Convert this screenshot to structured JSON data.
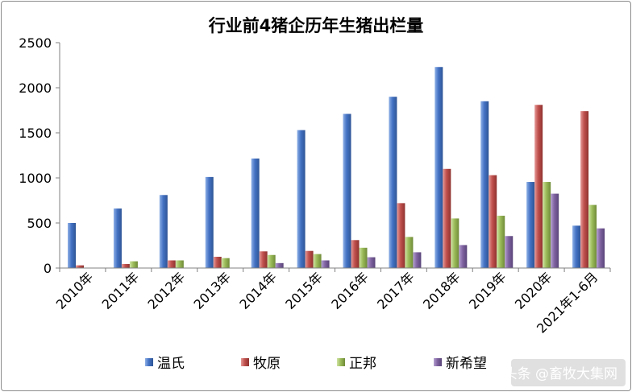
{
  "chart_data": {
    "type": "bar",
    "title": "行业前4猪企历年生猪出栏量",
    "xlabel": "",
    "ylabel": "",
    "ylim": [
      0,
      2500
    ],
    "yticks": [
      0,
      500,
      1000,
      1500,
      2000,
      2500
    ],
    "grid": false,
    "legend_position": "bottom",
    "categories": [
      "2010年",
      "2011年",
      "2012年",
      "2013年",
      "2014年",
      "2015年",
      "2016年",
      "2017年",
      "2018年",
      "2019年",
      "2020年",
      "2021年1-6月"
    ],
    "series": [
      {
        "name": "温氏",
        "color": "#4472c4",
        "values": [
          500,
          660,
          810,
          1010,
          1215,
          1530,
          1710,
          1900,
          2230,
          1850,
          955,
          470
        ]
      },
      {
        "name": "牧原",
        "color": "#c0504d",
        "values": [
          30,
          45,
          85,
          125,
          185,
          190,
          310,
          720,
          1100,
          1030,
          1810,
          1740
        ]
      },
      {
        "name": "正邦",
        "color": "#9bbb59",
        "values": [
          0,
          75,
          85,
          110,
          145,
          155,
          225,
          345,
          550,
          580,
          955,
          700
        ]
      },
      {
        "name": "新希望",
        "color": "#8064a2",
        "values": [
          0,
          0,
          0,
          0,
          55,
          85,
          120,
          175,
          255,
          355,
          825,
          440
        ]
      }
    ]
  },
  "watermark": "头条 @畜牧大集网"
}
